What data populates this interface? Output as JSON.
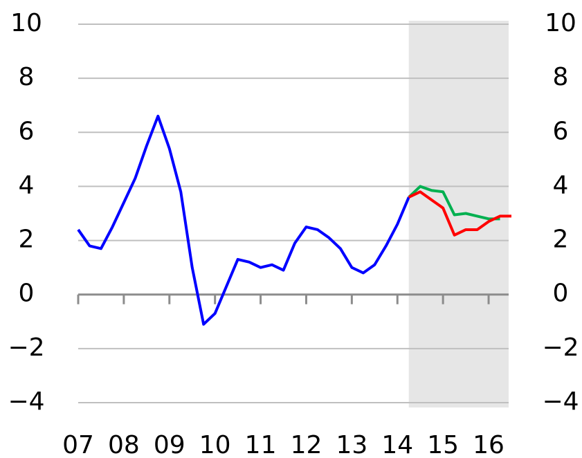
{
  "chart_data": {
    "type": "line",
    "xlim": [
      2007,
      2016.5
    ],
    "xticks": [
      {
        "value": 2007,
        "label": "07"
      },
      {
        "value": 2008,
        "label": "08"
      },
      {
        "value": 2009,
        "label": "09"
      },
      {
        "value": 2010,
        "label": "10"
      },
      {
        "value": 2011,
        "label": "11"
      },
      {
        "value": 2012,
        "label": "12"
      },
      {
        "value": 2013,
        "label": "13"
      },
      {
        "value": 2014,
        "label": "14"
      },
      {
        "value": 2015,
        "label": "15"
      },
      {
        "value": 2016,
        "label": "16"
      }
    ],
    "ylim": [
      -4,
      10
    ],
    "yticks": [
      {
        "value": -4,
        "label": "−4"
      },
      {
        "value": -2,
        "label": "−2"
      },
      0,
      2,
      4,
      6,
      8,
      10
    ],
    "grid": true,
    "shade": [
      2014.25,
      2016.5
    ],
    "series": [
      {
        "color": "#0000ff",
        "x": [
          2007,
          2007.25,
          2007.5,
          2007.75,
          2008,
          2008.25,
          2008.5,
          2008.75,
          2009,
          2009.25,
          2009.5,
          2009.75,
          2010,
          2010.25,
          2010.5,
          2010.75,
          2011,
          2011.25,
          2011.5,
          2011.75,
          2012,
          2012.25,
          2012.5,
          2012.75,
          2013,
          2013.25,
          2013.5,
          2013.75,
          2014,
          2014.25
        ],
        "values": [
          2.4,
          1.8,
          1.7,
          2.5,
          3.4,
          4.3,
          5.5,
          6.6,
          5.4,
          3.8,
          1.0,
          -1.1,
          -0.7,
          0.3,
          1.3,
          1.2,
          1.0,
          1.1,
          0.9,
          1.9,
          2.5,
          2.4,
          2.1,
          1.7,
          1.0,
          0.8,
          1.1,
          1.8,
          2.6,
          3.6
        ]
      },
      {
        "color": "#00b050",
        "x": [
          2014.25,
          2014.5,
          2014.75,
          2015,
          2015.25,
          2015.5,
          2015.75,
          2016,
          2016.25
        ],
        "values": [
          3.6,
          4.0,
          3.85,
          3.8,
          2.95,
          3.0,
          2.9,
          2.8,
          2.8
        ]
      },
      {
        "color": "#ff0000",
        "x": [
          2014.25,
          2014.5,
          2014.75,
          2015,
          2015.25,
          2015.5,
          2015.75,
          2016,
          2016.25,
          2016.5
        ],
        "values": [
          3.6,
          3.8,
          3.5,
          3.2,
          2.2,
          2.4,
          2.4,
          2.7,
          2.9,
          2.9
        ]
      }
    ]
  }
}
